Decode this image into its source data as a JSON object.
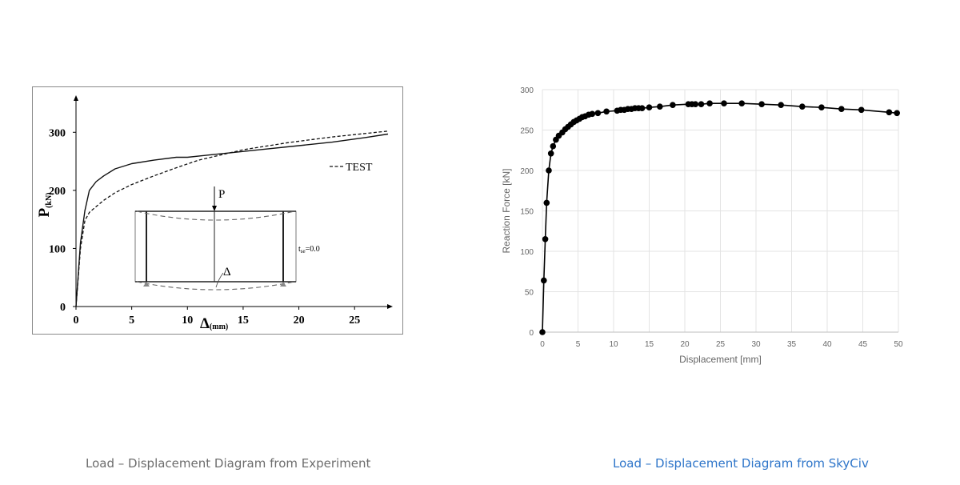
{
  "captions": {
    "left": "Load – Displacement Diagram from Experiment",
    "right": "Load – Displacement Diagram from SkyCiv"
  },
  "chart_data": [
    {
      "type": "line",
      "title": "",
      "ylabel_main": "P",
      "ylabel_sub": "(kN)",
      "xlabel_main": "Δ",
      "xlabel_sub": "(mm)",
      "xlim": [
        0,
        28
      ],
      "ylim": [
        0,
        350
      ],
      "xticks": [
        0,
        5,
        10,
        15,
        20,
        25
      ],
      "yticks": [
        0,
        100,
        200,
        300
      ],
      "grid": false,
      "legend": "right",
      "series": [
        {
          "name": "",
          "style": "solid",
          "x": [
            0,
            0.4,
            0.8,
            1.2,
            1.8,
            2.5,
            3.5,
            5,
            7,
            9,
            10,
            12,
            14,
            17,
            20,
            23,
            26,
            28
          ],
          "y": [
            0,
            110,
            165,
            200,
            215,
            225,
            237,
            246,
            252,
            257,
            257,
            261,
            265,
            271,
            277,
            283,
            291,
            297
          ]
        },
        {
          "name": "TEST",
          "style": "dashed",
          "x": [
            0,
            0.4,
            0.8,
            1.2,
            1.8,
            2.5,
            3.5,
            5,
            7,
            9,
            11,
            13,
            15,
            17,
            19,
            21,
            23,
            25,
            28
          ],
          "y": [
            0,
            100,
            148,
            162,
            172,
            183,
            196,
            210,
            225,
            239,
            252,
            261,
            270,
            276,
            282,
            287,
            292,
            296,
            302
          ]
        }
      ],
      "inset": {
        "load_label": "P",
        "deflection_label": "Δ",
        "note_main": "t",
        "note_sub": "se",
        "note_value": "=0.0"
      }
    },
    {
      "type": "line",
      "title": "",
      "xlabel": "Displacement [mm]",
      "ylabel": "Reaction Force [kN]",
      "xlim": [
        0,
        50
      ],
      "ylim": [
        0,
        300
      ],
      "xticks": [
        0,
        5,
        10,
        15,
        20,
        25,
        30,
        35,
        40,
        45,
        50
      ],
      "yticks": [
        0,
        50,
        100,
        150,
        200,
        250,
        300
      ],
      "grid": true,
      "markers": "circle",
      "color": "#000000",
      "series": [
        {
          "name": "",
          "x": [
            0,
            0.2,
            0.4,
            0.6,
            0.9,
            1.2,
            1.5,
            1.9,
            2.3,
            2.8,
            3.2,
            3.6,
            4.0,
            4.4,
            4.8,
            5.2,
            5.6,
            6.0,
            6.5,
            7.0,
            7.8,
            9.0,
            10.5,
            11.0,
            11.5,
            12.0,
            12.5,
            13.0,
            13.5,
            14.0,
            15.0,
            16.5,
            18.3,
            20.5,
            21.0,
            21.5,
            22.3,
            23.5,
            25.5,
            28.0,
            30.8,
            33.5,
            36.5,
            39.2,
            42.0,
            44.8,
            48.7,
            49.8
          ],
          "y": [
            0,
            64,
            115,
            160,
            200,
            221,
            230,
            238,
            243,
            247,
            251,
            254,
            257,
            260,
            262,
            264,
            266,
            267,
            269,
            270,
            271,
            273,
            274,
            275,
            275,
            276,
            276,
            277,
            277,
            277,
            278,
            279,
            281,
            282,
            282,
            282,
            282,
            283,
            283,
            283,
            282,
            281,
            279,
            278,
            276,
            275,
            272,
            271
          ]
        }
      ]
    }
  ]
}
